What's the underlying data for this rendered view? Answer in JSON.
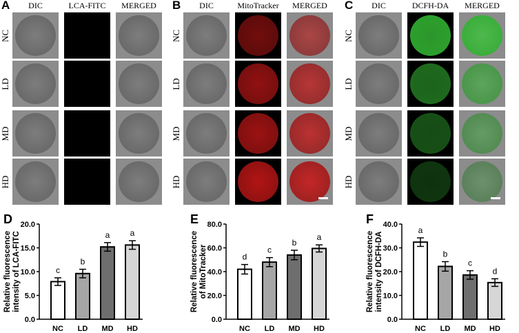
{
  "panels": [
    {
      "label": "A",
      "columns": [
        "DIC",
        "LCA-FITC",
        "MERGED"
      ],
      "rows": [
        "NC",
        "LD",
        "MD",
        "HD"
      ],
      "fluor": "ring-green",
      "intensity": [
        0.1,
        0.35,
        0.9,
        0.85
      ]
    },
    {
      "label": "B",
      "columns": [
        "DIC",
        "MitoTracker",
        "MERGED"
      ],
      "rows": [
        "NC",
        "LD",
        "MD",
        "HD"
      ],
      "fluor": "disc-red",
      "intensity": [
        0.55,
        0.7,
        0.75,
        0.85
      ]
    },
    {
      "label": "C",
      "columns": [
        "DIC",
        "DCFH-DA",
        "MERGED"
      ],
      "rows": [
        "NC",
        "LD",
        "MD",
        "HD"
      ],
      "fluor": "disc-green",
      "intensity": [
        0.9,
        0.6,
        0.45,
        0.3
      ]
    }
  ],
  "colors": {
    "fluor_green": "#3ccf3c",
    "fluor_red": "#d01818",
    "bars": [
      "#ffffff",
      "#a6a6a6",
      "#6e6e6e",
      "#d6d6d6"
    ]
  },
  "chart_data": [
    {
      "panel": "D",
      "type": "bar",
      "categories": [
        "NC",
        "LD",
        "MD",
        "HD"
      ],
      "values": [
        7.9,
        9.6,
        15.2,
        15.6
      ],
      "errors": [
        0.8,
        0.9,
        0.9,
        0.9
      ],
      "sig": [
        "c",
        "b",
        "a",
        "a"
      ],
      "ylabel": [
        "Relative fluorescence",
        "intensity of LCA-FITC"
      ],
      "ylim": [
        0,
        20
      ],
      "yticks": [
        "0.0",
        "5.0",
        "10.0",
        "15.0",
        "20.0"
      ]
    },
    {
      "panel": "E",
      "type": "bar",
      "categories": [
        "NC",
        "LD",
        "MD",
        "HD"
      ],
      "values": [
        42.0,
        48.0,
        54.0,
        59.5
      ],
      "errors": [
        4.0,
        3.8,
        4.0,
        3.0
      ],
      "sig": [
        "d",
        "c",
        "b",
        "a"
      ],
      "ylabel": [
        "Relative fluorescence",
        "of MitoTracker"
      ],
      "ylim": [
        0,
        80
      ],
      "yticks": [
        "0.0",
        "20.0",
        "40.0",
        "60.0",
        "80.0"
      ]
    },
    {
      "panel": "F",
      "type": "bar",
      "categories": [
        "NC",
        "LD",
        "MD",
        "HD"
      ],
      "values": [
        32.4,
        22.2,
        18.6,
        15.4
      ],
      "errors": [
        1.8,
        2.0,
        1.8,
        1.6
      ],
      "sig": [
        "a",
        "b",
        "c",
        "d"
      ],
      "ylabel": [
        "Relative fluorescence",
        "intensity of DCFH-DA"
      ],
      "ylim": [
        0,
        40
      ],
      "yticks": [
        "0.0",
        "10.0",
        "20.0",
        "30.0",
        "40.0"
      ]
    }
  ]
}
